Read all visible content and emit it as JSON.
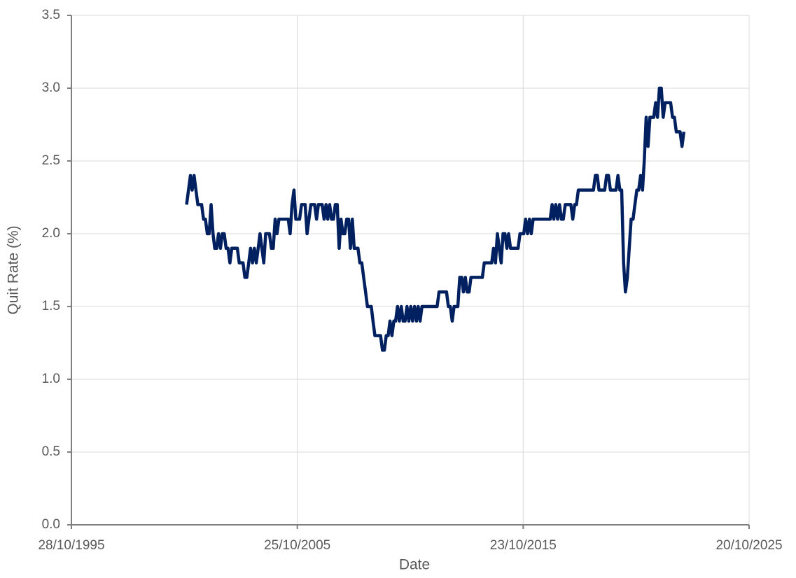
{
  "chart_data": {
    "type": "line",
    "x_label": "Date",
    "y_label": "Quit Rate (%)",
    "xlim": [
      "1995-10-28",
      "2025-10-20"
    ],
    "xticks": [
      {
        "value": "1995-10-28",
        "label": "28/10/1995"
      },
      {
        "value": "2005-10-25",
        "label": "25/10/2005"
      },
      {
        "value": "2015-10-23",
        "label": "23/10/2015"
      },
      {
        "value": "2025-10-20",
        "label": "20/10/2025"
      }
    ],
    "ylim": [
      0,
      3.5
    ],
    "yticks": [
      {
        "value": 0,
        "label": "0.0"
      },
      0.5,
      {
        "value": 1,
        "label": "1.0"
      },
      1.5,
      {
        "value": 2,
        "label": "2.0"
      },
      2.5,
      {
        "value": 3,
        "label": "3.0"
      },
      3.5
    ],
    "grid": true,
    "x": [
      "2000-12-01",
      "2001-01-01",
      "2001-02-01",
      "2001-03-01",
      "2001-04-01",
      "2001-05-01",
      "2001-06-01",
      "2001-07-01",
      "2001-08-01",
      "2001-09-01",
      "2001-10-01",
      "2001-11-01",
      "2001-12-01",
      "2002-01-01",
      "2002-02-01",
      "2002-03-01",
      "2002-04-01",
      "2002-05-01",
      "2002-06-01",
      "2002-07-01",
      "2002-08-01",
      "2002-09-01",
      "2002-10-01",
      "2002-11-01",
      "2002-12-01",
      "2003-01-01",
      "2003-02-01",
      "2003-03-01",
      "2003-04-01",
      "2003-05-01",
      "2003-06-01",
      "2003-07-01",
      "2003-08-01",
      "2003-09-01",
      "2003-10-01",
      "2003-11-01",
      "2003-12-01",
      "2004-01-01",
      "2004-02-01",
      "2004-03-01",
      "2004-04-01",
      "2004-05-01",
      "2004-06-01",
      "2004-07-01",
      "2004-08-01",
      "2004-09-01",
      "2004-10-01",
      "2004-11-01",
      "2004-12-01",
      "2005-01-01",
      "2005-02-01",
      "2005-03-01",
      "2005-04-01",
      "2005-05-01",
      "2005-06-01",
      "2005-07-01",
      "2005-08-01",
      "2005-09-01",
      "2005-10-01",
      "2005-11-01",
      "2005-12-01",
      "2006-01-01",
      "2006-02-01",
      "2006-03-01",
      "2006-04-01",
      "2006-05-01",
      "2006-06-01",
      "2006-07-01",
      "2006-08-01",
      "2006-09-01",
      "2006-10-01",
      "2006-11-01",
      "2006-12-01",
      "2007-01-01",
      "2007-02-01",
      "2007-03-01",
      "2007-04-01",
      "2007-05-01",
      "2007-06-01",
      "2007-07-01",
      "2007-08-01",
      "2007-09-01",
      "2007-10-01",
      "2007-11-01",
      "2007-12-01",
      "2008-01-01",
      "2008-02-01",
      "2008-03-01",
      "2008-04-01",
      "2008-05-01",
      "2008-06-01",
      "2008-07-01",
      "2008-08-01",
      "2008-09-01",
      "2008-10-01",
      "2008-11-01",
      "2008-12-01",
      "2009-01-01",
      "2009-02-01",
      "2009-03-01",
      "2009-04-01",
      "2009-05-01",
      "2009-06-01",
      "2009-07-01",
      "2009-08-01",
      "2009-09-01",
      "2009-10-01",
      "2009-11-01",
      "2009-12-01",
      "2010-01-01",
      "2010-02-01",
      "2010-03-01",
      "2010-04-01",
      "2010-05-01",
      "2010-06-01",
      "2010-07-01",
      "2010-08-01",
      "2010-09-01",
      "2010-10-01",
      "2010-11-01",
      "2010-12-01",
      "2011-01-01",
      "2011-02-01",
      "2011-03-01",
      "2011-04-01",
      "2011-05-01",
      "2011-06-01",
      "2011-07-01",
      "2011-08-01",
      "2011-09-01",
      "2011-10-01",
      "2011-11-01",
      "2011-12-01",
      "2012-01-01",
      "2012-02-01",
      "2012-03-01",
      "2012-04-01",
      "2012-05-01",
      "2012-06-01",
      "2012-07-01",
      "2012-08-01",
      "2012-09-01",
      "2012-10-01",
      "2012-11-01",
      "2012-12-01",
      "2013-01-01",
      "2013-02-01",
      "2013-03-01",
      "2013-04-01",
      "2013-05-01",
      "2013-06-01",
      "2013-07-01",
      "2013-08-01",
      "2013-09-01",
      "2013-10-01",
      "2013-11-01",
      "2013-12-01",
      "2014-01-01",
      "2014-02-01",
      "2014-03-01",
      "2014-04-01",
      "2014-05-01",
      "2014-06-01",
      "2014-07-01",
      "2014-08-01",
      "2014-09-01",
      "2014-10-01",
      "2014-11-01",
      "2014-12-01",
      "2015-01-01",
      "2015-02-01",
      "2015-03-01",
      "2015-04-01",
      "2015-05-01",
      "2015-06-01",
      "2015-07-01",
      "2015-08-01",
      "2015-09-01",
      "2015-10-01",
      "2015-11-01",
      "2015-12-01",
      "2016-01-01",
      "2016-02-01",
      "2016-03-01",
      "2016-04-01",
      "2016-05-01",
      "2016-06-01",
      "2016-07-01",
      "2016-08-01",
      "2016-09-01",
      "2016-10-01",
      "2016-11-01",
      "2016-12-01",
      "2017-01-01",
      "2017-02-01",
      "2017-03-01",
      "2017-04-01",
      "2017-05-01",
      "2017-06-01",
      "2017-07-01",
      "2017-08-01",
      "2017-09-01",
      "2017-10-01",
      "2017-11-01",
      "2017-12-01",
      "2018-01-01",
      "2018-02-01",
      "2018-03-01",
      "2018-04-01",
      "2018-05-01",
      "2018-06-01",
      "2018-07-01",
      "2018-08-01",
      "2018-09-01",
      "2018-10-01",
      "2018-11-01",
      "2018-12-01",
      "2019-01-01",
      "2019-02-01",
      "2019-03-01",
      "2019-04-01",
      "2019-05-01",
      "2019-06-01",
      "2019-07-01",
      "2019-08-01",
      "2019-09-01",
      "2019-10-01",
      "2019-11-01",
      "2019-12-01",
      "2020-01-01",
      "2020-02-01",
      "2020-03-01",
      "2020-04-01",
      "2020-05-01",
      "2020-06-01",
      "2020-07-01",
      "2020-08-01",
      "2020-09-01",
      "2020-10-01",
      "2020-11-01",
      "2020-12-01",
      "2021-01-01",
      "2021-02-01",
      "2021-03-01",
      "2021-04-01",
      "2021-05-01",
      "2021-06-01",
      "2021-07-01",
      "2021-08-01",
      "2021-09-01",
      "2021-10-01",
      "2021-11-01",
      "2021-12-01",
      "2022-01-01",
      "2022-02-01",
      "2022-03-01",
      "2022-04-01",
      "2022-05-01",
      "2022-06-01",
      "2022-07-01",
      "2022-08-01",
      "2022-09-01",
      "2022-10-01",
      "2022-11-01",
      "2022-12-01"
    ],
    "series": [
      {
        "color": "#002060",
        "values": [
          2.2,
          2.3,
          2.4,
          2.3,
          2.4,
          2.3,
          2.2,
          2.2,
          2.2,
          2.1,
          2.1,
          2.0,
          2.0,
          2.2,
          2.0,
          1.9,
          1.9,
          2.0,
          1.9,
          2.0,
          2.0,
          1.9,
          1.9,
          1.8,
          1.9,
          1.9,
          1.9,
          1.9,
          1.8,
          1.8,
          1.8,
          1.7,
          1.7,
          1.8,
          1.9,
          1.8,
          1.9,
          1.8,
          1.9,
          2.0,
          1.9,
          1.8,
          2.0,
          2.0,
          2.0,
          1.9,
          1.9,
          2.1,
          2.0,
          2.1,
          2.1,
          2.1,
          2.1,
          2.1,
          2.1,
          2.0,
          2.2,
          2.3,
          2.1,
          2.1,
          2.1,
          2.2,
          2.2,
          2.2,
          2.0,
          2.1,
          2.2,
          2.2,
          2.2,
          2.1,
          2.2,
          2.2,
          2.2,
          2.1,
          2.2,
          2.1,
          2.2,
          2.1,
          2.1,
          2.2,
          2.2,
          1.9,
          2.1,
          2.0,
          2.0,
          2.1,
          2.1,
          1.9,
          2.1,
          1.9,
          1.9,
          1.9,
          1.8,
          1.8,
          1.7,
          1.6,
          1.5,
          1.5,
          1.5,
          1.4,
          1.3,
          1.3,
          1.3,
          1.3,
          1.2,
          1.2,
          1.3,
          1.3,
          1.4,
          1.3,
          1.4,
          1.4,
          1.5,
          1.4,
          1.5,
          1.4,
          1.4,
          1.5,
          1.4,
          1.5,
          1.4,
          1.5,
          1.4,
          1.5,
          1.4,
          1.5,
          1.5,
          1.5,
          1.5,
          1.5,
          1.5,
          1.5,
          1.5,
          1.5,
          1.6,
          1.6,
          1.6,
          1.6,
          1.6,
          1.5,
          1.5,
          1.4,
          1.5,
          1.5,
          1.5,
          1.7,
          1.7,
          1.6,
          1.7,
          1.6,
          1.6,
          1.7,
          1.7,
          1.7,
          1.7,
          1.7,
          1.7,
          1.7,
          1.8,
          1.8,
          1.8,
          1.8,
          1.8,
          1.9,
          1.8,
          2.0,
          1.9,
          1.8,
          2.0,
          2.0,
          1.9,
          2.0,
          1.9,
          1.9,
          1.9,
          1.9,
          1.9,
          2.0,
          2.0,
          2.0,
          2.1,
          2.0,
          2.1,
          2.0,
          2.1,
          2.1,
          2.1,
          2.1,
          2.1,
          2.1,
          2.1,
          2.1,
          2.1,
          2.1,
          2.2,
          2.1,
          2.2,
          2.1,
          2.2,
          2.1,
          2.1,
          2.2,
          2.2,
          2.2,
          2.2,
          2.1,
          2.2,
          2.2,
          2.3,
          2.3,
          2.3,
          2.3,
          2.3,
          2.3,
          2.3,
          2.3,
          2.3,
          2.4,
          2.4,
          2.3,
          2.3,
          2.3,
          2.3,
          2.4,
          2.4,
          2.3,
          2.3,
          2.3,
          2.3,
          2.4,
          2.3,
          2.3,
          1.8,
          1.6,
          1.7,
          1.9,
          2.1,
          2.1,
          2.2,
          2.3,
          2.3,
          2.4,
          2.3,
          2.5,
          2.8,
          2.6,
          2.8,
          2.8,
          2.8,
          2.9,
          2.8,
          3.0,
          3.0,
          2.8,
          2.9,
          2.9,
          2.9,
          2.9,
          2.8,
          2.8,
          2.7,
          2.7,
          2.7,
          2.6,
          2.7
        ]
      }
    ]
  }
}
